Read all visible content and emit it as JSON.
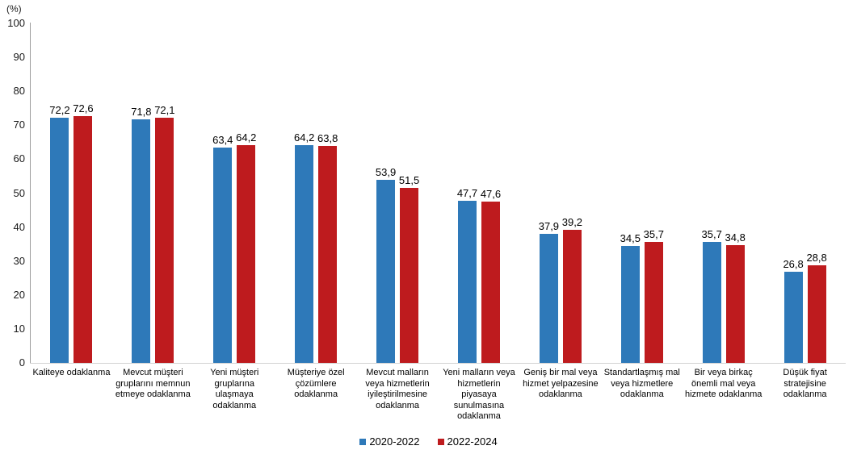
{
  "chart_data": {
    "type": "bar",
    "title": "",
    "xlabel": "",
    "ylabel": "(%)",
    "ylim": [
      0,
      100
    ],
    "yticks": [
      0,
      10,
      20,
      30,
      40,
      50,
      60,
      70,
      80,
      90,
      100
    ],
    "grid": false,
    "legend_position": "bottom-center",
    "decimal_separator": ",",
    "categories": [
      "Kaliteye odaklanma",
      "Mevcut müşteri gruplarını memnun etmeye odaklanma",
      "Yeni müşteri gruplarına ulaşmaya odaklanma",
      "Müşteriye özel çözümlere odaklanma",
      "Mevcut malların veya hizmetlerin iyileştirilmesine odaklanma",
      "Yeni malların veya hizmetlerin piyasaya sunulmasına odaklanma",
      "Geniş bir mal veya hizmet yelpazesine odaklanma",
      "Standartlaşmış mal veya hizmetlere odaklanma",
      "Bir veya birkaç önemli mal veya hizmete odaklanma",
      "Düşük fiyat stratejisine odaklanma"
    ],
    "series": [
      {
        "name": "2020-2022",
        "color": "#2E79B9",
        "values": [
          72.2,
          71.8,
          63.4,
          64.2,
          53.9,
          47.7,
          37.9,
          34.5,
          35.7,
          26.8
        ],
        "labels": [
          "72,2",
          "71,8",
          "63,4",
          "64,2",
          "53,9",
          "47,7",
          "37,9",
          "34,5",
          "35,7",
          "26,8"
        ]
      },
      {
        "name": "2022-2024",
        "color": "#BE1B1E",
        "values": [
          72.6,
          72.1,
          64.2,
          63.8,
          51.5,
          47.6,
          39.2,
          35.7,
          34.8,
          28.8
        ],
        "labels": [
          "72,6",
          "72,1",
          "64,2",
          "63,8",
          "51,5",
          "47,6",
          "39,2",
          "35,7",
          "34,8",
          "28,8"
        ]
      }
    ]
  }
}
